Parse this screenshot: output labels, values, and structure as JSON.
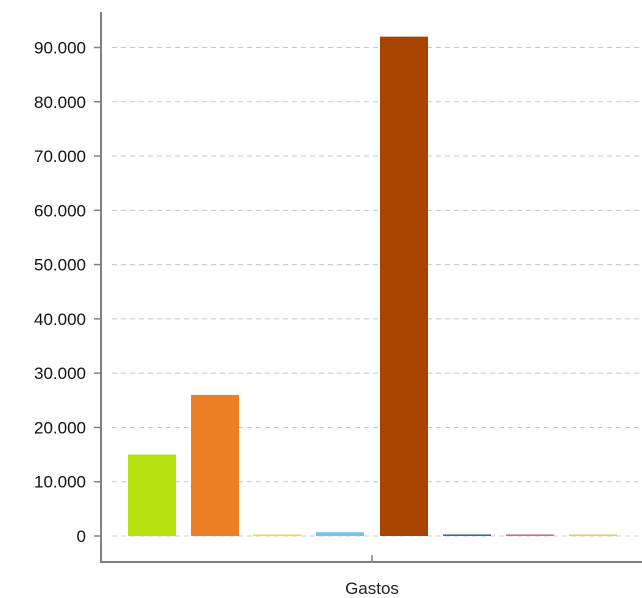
{
  "chart_data": {
    "type": "bar",
    "categories": [
      "Gastos"
    ],
    "series": [
      {
        "color": "#b5e00d",
        "values": [
          15000
        ]
      },
      {
        "color": "#ec7e26",
        "values": [
          26000
        ]
      },
      {
        "color": "#f1dc3a",
        "values": [
          200
        ]
      },
      {
        "color": "#78c2e6",
        "values": [
          700
        ]
      },
      {
        "color": "#a94300",
        "values": [
          92000
        ]
      },
      {
        "color": "#2f6f98",
        "values": [
          150
        ]
      },
      {
        "color": "#d26a8e",
        "values": [
          100
        ]
      },
      {
        "color": "#d6d36a",
        "values": [
          100
        ]
      }
    ],
    "ylim": [
      0,
      95000
    ],
    "yticks": [
      {
        "value": 0,
        "label": "0"
      },
      {
        "value": 10000,
        "label": "10.000"
      },
      {
        "value": 20000,
        "label": "20.000"
      },
      {
        "value": 30000,
        "label": "30.000"
      },
      {
        "value": 40000,
        "label": "40.000"
      },
      {
        "value": 50000,
        "label": "50.000"
      },
      {
        "value": 60000,
        "label": "60.000"
      },
      {
        "value": 70000,
        "label": "70.000"
      },
      {
        "value": 80000,
        "label": "80.000"
      },
      {
        "value": 90000,
        "label": "90.000"
      }
    ],
    "grid": true,
    "legend": "none"
  }
}
